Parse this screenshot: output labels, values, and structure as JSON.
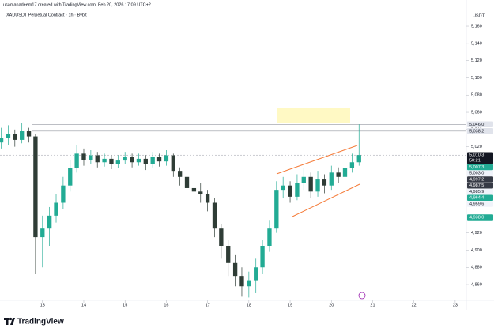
{
  "header": {
    "author_line": "usamanadeem17 created with TradingView.com, Feb 20, 2026 17:09 UTC+2",
    "brand": "TradingView"
  },
  "chart_data": {
    "type": "candlestick",
    "title": "XAUUSDT Perpetual Contract · 1h · Bybit",
    "y_axis_label": "USDT",
    "up_color": "#22ab94",
    "down_color": "#2f3d36",
    "x": [
      12,
      12.17,
      12.33,
      12.5,
      12.67,
      12.83,
      13,
      13.17,
      13.33,
      13.5,
      13.67,
      13.83,
      14,
      14.17,
      14.33,
      14.5,
      14.67,
      14.83,
      15,
      15.17,
      15.33,
      15.5,
      15.67,
      15.83,
      16,
      16.17,
      16.33,
      16.5,
      16.67,
      16.83,
      17,
      17.17,
      17.33,
      17.5,
      17.67,
      17.83,
      18,
      18.17,
      18.33,
      18.5,
      18.67,
      18.83,
      19,
      19.17,
      19.33,
      19.5,
      19.67,
      19.83,
      20,
      20.17,
      20.33,
      20.5,
      20.67
    ],
    "open": [
      5025,
      5030,
      5035,
      5028,
      5038,
      5032,
      4915,
      4925,
      4940,
      4955,
      4975,
      4995,
      5012,
      5005,
      5010,
      5002,
      5006,
      5000,
      5004,
      5008,
      5002,
      5006,
      5000,
      5008,
      5003,
      5010,
      4992,
      4985,
      4972,
      4968,
      4965,
      4955,
      4925,
      4905,
      4885,
      4870,
      4858,
      4865,
      4880,
      4905,
      4925,
      4970,
      4975,
      4962,
      4978,
      4985,
      4968,
      4982,
      4975,
      4990,
      4985,
      4995,
      5002
    ],
    "high": [
      5042,
      5045,
      5040,
      5048,
      5042,
      5035,
      4940,
      4950,
      4965,
      4985,
      5005,
      5022,
      5018,
      5016,
      5014,
      5012,
      5010,
      5010,
      5014,
      5012,
      5012,
      5010,
      5014,
      5012,
      5016,
      5012,
      4996,
      4990,
      4982,
      4978,
      4970,
      4960,
      4930,
      4912,
      4895,
      4880,
      4875,
      4890,
      4912,
      4935,
      4980,
      4985,
      4980,
      4988,
      4995,
      4990,
      4992,
      4988,
      4998,
      4996,
      5005,
      5012,
      5046
    ],
    "low": [
      5018,
      5022,
      5020,
      5024,
      5025,
      4872,
      4880,
      4905,
      4932,
      4948,
      4968,
      4990,
      4998,
      5000,
      4996,
      4997,
      4994,
      4995,
      5000,
      4996,
      4998,
      4993,
      4996,
      4997,
      4998,
      4985,
      4975,
      4962,
      4958,
      4955,
      4945,
      4915,
      4890,
      4870,
      4858,
      4846,
      4845,
      4850,
      4872,
      4898,
      4920,
      4960,
      4955,
      4958,
      4970,
      4960,
      4962,
      4966,
      4970,
      4978,
      4980,
      4990,
      4998
    ],
    "close": [
      5030,
      5035,
      5028,
      5038,
      5032,
      4915,
      4925,
      4940,
      4955,
      4975,
      4995,
      5012,
      5005,
      5010,
      5002,
      5006,
      5000,
      5004,
      5008,
      5002,
      5006,
      5000,
      5008,
      5003,
      5010,
      4992,
      4985,
      4972,
      4968,
      4965,
      4955,
      4925,
      4905,
      4885,
      4870,
      4858,
      4865,
      4880,
      4905,
      4925,
      4970,
      4975,
      4962,
      4978,
      4985,
      4968,
      4982,
      4975,
      4990,
      4985,
      4995,
      5002,
      5010.3
    ],
    "xlim": [
      11.97,
      23.27
    ],
    "xticks": [
      13,
      14,
      15,
      16,
      17,
      18,
      19,
      20,
      21,
      22,
      23
    ],
    "ylim": [
      4841.7,
      5190.3
    ],
    "yticks": [
      {
        "value": 4860,
        "label": "4,860"
      },
      {
        "value": 4880,
        "label": "4,880"
      },
      {
        "value": 4900,
        "label": "4,900"
      },
      {
        "value": 4920,
        "label": "4,920"
      },
      {
        "value": 5020,
        "label": "5,020"
      },
      {
        "value": 5040,
        "label": "5,040"
      },
      {
        "value": 5060,
        "label": "5,060"
      },
      {
        "value": 5080,
        "label": "5,080"
      },
      {
        "value": 5100,
        "label": "5,100"
      },
      {
        "value": 5120,
        "label": "5,120"
      },
      {
        "value": 5140,
        "label": "5,140"
      },
      {
        "value": 5160,
        "label": "5,160"
      }
    ],
    "price_labels": [
      {
        "value": 5046.0,
        "label": "5,046.0",
        "color": "#e0e3eb",
        "line": true
      },
      {
        "value": 5038.2,
        "label": "5,038.2",
        "color": "#e0e3eb",
        "line": true
      },
      {
        "value": 5010.3,
        "label": "5,010.3",
        "color": "#131722",
        "countdown": "50:21"
      },
      {
        "value": 5007.3,
        "label": "5,007.3",
        "color": "#22ab94"
      },
      {
        "value": 5003.0,
        "label": "5,003.0",
        "color": "#f0f3fa"
      },
      {
        "value": 4997.2,
        "label": "4,997.2",
        "color": "#363a45"
      },
      {
        "value": 4987.5,
        "label": "4,987.5",
        "color": "#363a45"
      },
      {
        "value": 4985.9,
        "label": "4,985.9",
        "color": "#f0f3fa"
      },
      {
        "value": 4964.4,
        "label": "4,964.4",
        "color": "#22ab94"
      },
      {
        "value": 4959.6,
        "label": "4,959.6",
        "color": "#f0f3fa"
      },
      {
        "value": 4938.0,
        "label": "4,938.0",
        "color": "#22ab94"
      }
    ]
  }
}
